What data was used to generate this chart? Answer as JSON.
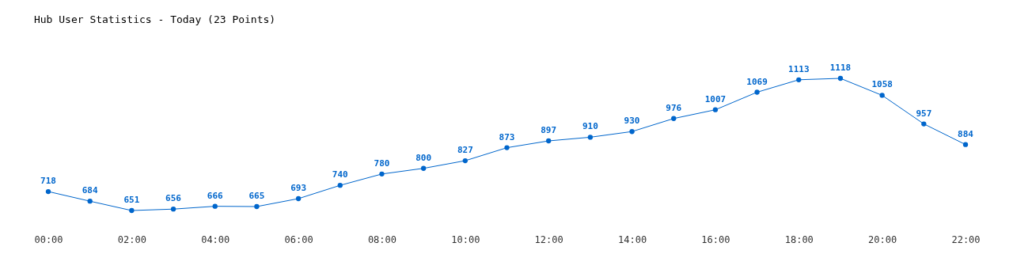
{
  "chart_data": {
    "type": "line",
    "title": "Hub User Statistics - Today (23 Points)",
    "x": [
      0,
      1,
      2,
      3,
      4,
      5,
      6,
      7,
      8,
      9,
      10,
      11,
      12,
      13,
      14,
      15,
      16,
      17,
      18,
      19,
      20,
      21,
      22
    ],
    "values": [
      718,
      684,
      651,
      656,
      666,
      665,
      693,
      740,
      780,
      800,
      827,
      873,
      897,
      910,
      930,
      976,
      1007,
      1069,
      1113,
      1118,
      1058,
      957,
      884
    ],
    "color": "#0066cc",
    "xlim": [
      0,
      22
    ],
    "xticks": [
      {
        "value": 0,
        "label": "00:00"
      },
      {
        "value": 2,
        "label": "02:00"
      },
      {
        "value": 4,
        "label": "04:00"
      },
      {
        "value": 6,
        "label": "06:00"
      },
      {
        "value": 8,
        "label": "08:00"
      },
      {
        "value": 10,
        "label": "10:00"
      },
      {
        "value": 12,
        "label": "12:00"
      },
      {
        "value": 14,
        "label": "14:00"
      },
      {
        "value": 16,
        "label": "16:00"
      },
      {
        "value": 18,
        "label": "18:00"
      },
      {
        "value": 20,
        "label": "20:00"
      },
      {
        "value": 22,
        "label": "22:00"
      }
    ],
    "tick_labels": "x",
    "marker": "circle",
    "line_style": "solid",
    "data_labels": true
  }
}
